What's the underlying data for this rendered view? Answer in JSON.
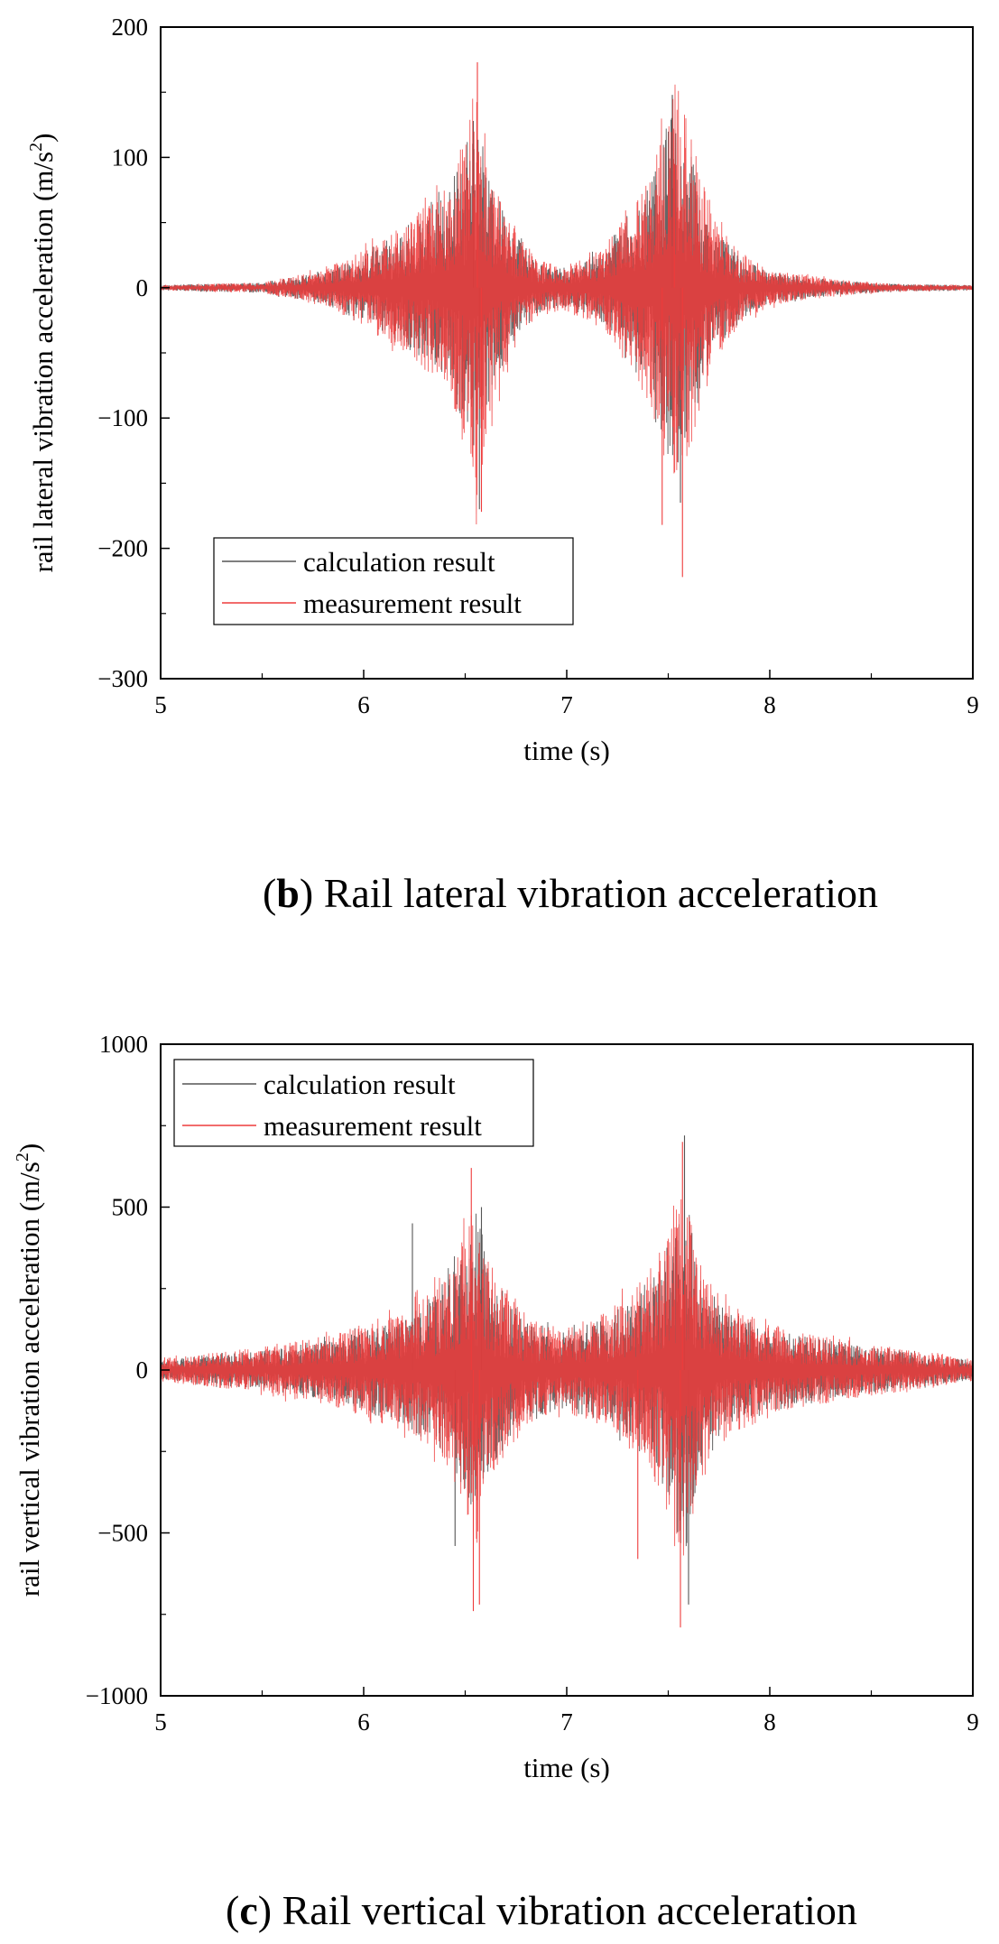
{
  "chart_data": [
    {
      "id": "lateral",
      "type": "line",
      "panel_letter": "b",
      "caption": "Rail lateral vibration acceleration",
      "xlabel": "time (s)",
      "ylabel": "rail lateral vibration acceleration (m/s",
      "ylabel_sup": "2",
      "ylabel_end": ")",
      "xlim": [
        5,
        9
      ],
      "ylim": [
        -300,
        200
      ],
      "xticks": [
        5,
        6,
        7,
        8,
        9
      ],
      "xtick_labels": [
        "5",
        "6",
        "7",
        "8",
        "9"
      ],
      "yticks": [
        -300,
        -200,
        -100,
        0,
        100,
        200
      ],
      "ytick_labels": [
        "−300",
        "−200",
        "−100",
        "0",
        "100",
        "200"
      ],
      "grid": false,
      "legend_position": "bottom-left",
      "series": [
        {
          "name": "calculation result",
          "color": "#555555",
          "envelope": [
            {
              "x": 5.0,
              "amp": 2
            },
            {
              "x": 5.5,
              "amp": 4
            },
            {
              "x": 5.8,
              "amp": 12
            },
            {
              "x": 6.0,
              "amp": 25
            },
            {
              "x": 6.2,
              "amp": 45
            },
            {
              "x": 6.4,
              "amp": 70
            },
            {
              "x": 6.5,
              "amp": 110
            },
            {
              "x": 6.55,
              "amp": 130
            },
            {
              "x": 6.6,
              "amp": 95
            },
            {
              "x": 6.7,
              "amp": 55
            },
            {
              "x": 6.85,
              "amp": 20
            },
            {
              "x": 7.0,
              "amp": 15
            },
            {
              "x": 7.2,
              "amp": 30
            },
            {
              "x": 7.35,
              "amp": 60
            },
            {
              "x": 7.45,
              "amp": 100
            },
            {
              "x": 7.52,
              "amp": 150
            },
            {
              "x": 7.6,
              "amp": 110
            },
            {
              "x": 7.7,
              "amp": 55
            },
            {
              "x": 7.85,
              "amp": 25
            },
            {
              "x": 8.0,
              "amp": 12
            },
            {
              "x": 8.3,
              "amp": 6
            },
            {
              "x": 8.6,
              "amp": 3
            },
            {
              "x": 9.0,
              "amp": 2
            }
          ],
          "peaks": [
            {
              "x": 6.54,
              "y": 128
            },
            {
              "x": 6.57,
              "y": -170
            },
            {
              "x": 7.52,
              "y": 148
            },
            {
              "x": 7.56,
              "y": -165
            }
          ]
        },
        {
          "name": "measurement result",
          "color": "#ee3b3b",
          "envelope": [
            {
              "x": 5.0,
              "amp": 2
            },
            {
              "x": 5.5,
              "amp": 4
            },
            {
              "x": 5.8,
              "amp": 14
            },
            {
              "x": 6.0,
              "amp": 30
            },
            {
              "x": 6.2,
              "amp": 50
            },
            {
              "x": 6.4,
              "amp": 75
            },
            {
              "x": 6.5,
              "amp": 120
            },
            {
              "x": 6.56,
              "amp": 165
            },
            {
              "x": 6.62,
              "amp": 100
            },
            {
              "x": 6.7,
              "amp": 60
            },
            {
              "x": 6.85,
              "amp": 22
            },
            {
              "x": 7.0,
              "amp": 18
            },
            {
              "x": 7.2,
              "amp": 35
            },
            {
              "x": 7.35,
              "amp": 70
            },
            {
              "x": 7.45,
              "amp": 110
            },
            {
              "x": 7.55,
              "amp": 160
            },
            {
              "x": 7.62,
              "amp": 115
            },
            {
              "x": 7.72,
              "amp": 60
            },
            {
              "x": 7.85,
              "amp": 28
            },
            {
              "x": 8.0,
              "amp": 14
            },
            {
              "x": 8.3,
              "amp": 7
            },
            {
              "x": 8.6,
              "amp": 3
            },
            {
              "x": 9.0,
              "amp": 2
            }
          ],
          "peaks": [
            {
              "x": 6.56,
              "y": 173
            },
            {
              "x": 6.58,
              "y": -172
            },
            {
              "x": 7.47,
              "y": -182
            },
            {
              "x": 7.57,
              "y": -222
            },
            {
              "x": 7.53,
              "y": 95
            }
          ]
        }
      ]
    },
    {
      "id": "vertical",
      "type": "line",
      "panel_letter": "c",
      "caption": "Rail vertical vibration acceleration",
      "xlabel": "time (s)",
      "ylabel": "rail vertical vibration acceleration (m/s",
      "ylabel_sup": "2",
      "ylabel_end": ")",
      "xlim": [
        5,
        9
      ],
      "ylim": [
        -1000,
        1000
      ],
      "xticks": [
        5,
        6,
        7,
        8,
        9
      ],
      "xtick_labels": [
        "5",
        "6",
        "7",
        "8",
        "9"
      ],
      "yticks": [
        -1000,
        -500,
        0,
        500,
        1000
      ],
      "ytick_labels": [
        "−1000",
        "−500",
        "0",
        "500",
        "1000"
      ],
      "grid": false,
      "legend_position": "top-left",
      "series": [
        {
          "name": "calculation result",
          "color": "#555555",
          "envelope": [
            {
              "x": 5.0,
              "amp": 30
            },
            {
              "x": 5.5,
              "amp": 60
            },
            {
              "x": 5.9,
              "amp": 100
            },
            {
              "x": 6.2,
              "amp": 170
            },
            {
              "x": 6.4,
              "amp": 260
            },
            {
              "x": 6.5,
              "amp": 380
            },
            {
              "x": 6.56,
              "amp": 480
            },
            {
              "x": 6.62,
              "amp": 300
            },
            {
              "x": 6.8,
              "amp": 150
            },
            {
              "x": 7.0,
              "amp": 120
            },
            {
              "x": 7.2,
              "amp": 160
            },
            {
              "x": 7.4,
              "amp": 260
            },
            {
              "x": 7.5,
              "amp": 400
            },
            {
              "x": 7.58,
              "amp": 600
            },
            {
              "x": 7.65,
              "amp": 320
            },
            {
              "x": 7.8,
              "amp": 180
            },
            {
              "x": 8.1,
              "amp": 110
            },
            {
              "x": 8.5,
              "amp": 70
            },
            {
              "x": 9.0,
              "amp": 30
            }
          ],
          "peaks": [
            {
              "x": 6.24,
              "y": 450
            },
            {
              "x": 6.58,
              "y": 500
            },
            {
              "x": 6.45,
              "y": -540
            },
            {
              "x": 7.58,
              "y": 720
            },
            {
              "x": 7.6,
              "y": -720
            }
          ]
        },
        {
          "name": "measurement result",
          "color": "#ee3b3b",
          "envelope": [
            {
              "x": 5.0,
              "amp": 35
            },
            {
              "x": 5.5,
              "amp": 70
            },
            {
              "x": 5.9,
              "amp": 120
            },
            {
              "x": 6.2,
              "amp": 190
            },
            {
              "x": 6.4,
              "amp": 280
            },
            {
              "x": 6.5,
              "amp": 420
            },
            {
              "x": 6.55,
              "amp": 560
            },
            {
              "x": 6.62,
              "amp": 340
            },
            {
              "x": 6.8,
              "amp": 170
            },
            {
              "x": 7.0,
              "amp": 130
            },
            {
              "x": 7.2,
              "amp": 180
            },
            {
              "x": 7.4,
              "amp": 300
            },
            {
              "x": 7.5,
              "amp": 450
            },
            {
              "x": 7.58,
              "amp": 640
            },
            {
              "x": 7.65,
              "amp": 360
            },
            {
              "x": 7.8,
              "amp": 200
            },
            {
              "x": 8.1,
              "amp": 120
            },
            {
              "x": 8.5,
              "amp": 80
            },
            {
              "x": 9.0,
              "amp": 35
            }
          ],
          "peaks": [
            {
              "x": 6.53,
              "y": 620
            },
            {
              "x": 6.54,
              "y": -740
            },
            {
              "x": 6.57,
              "y": -720
            },
            {
              "x": 7.57,
              "y": 700
            },
            {
              "x": 7.56,
              "y": -790
            },
            {
              "x": 7.35,
              "y": -580
            }
          ]
        }
      ]
    }
  ]
}
